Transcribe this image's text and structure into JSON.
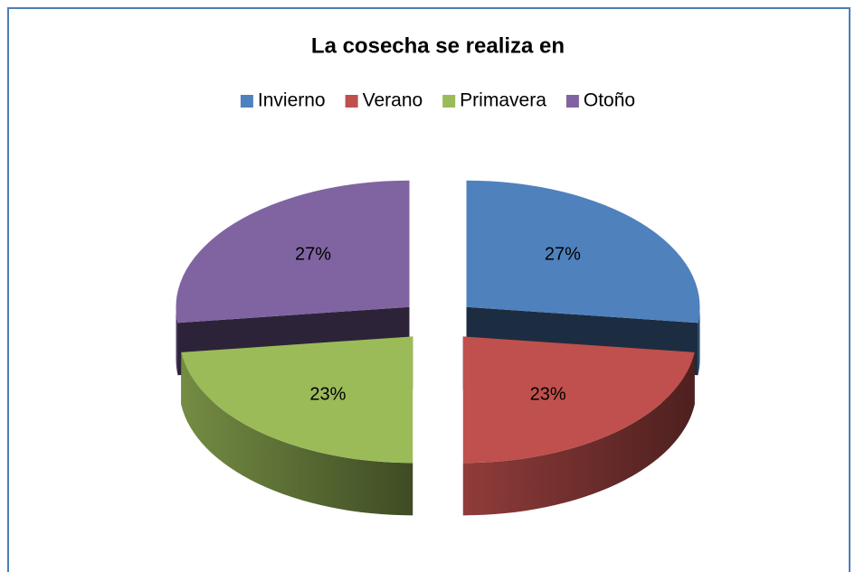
{
  "chart_data": {
    "type": "pie3d",
    "title": "La cosecha se realiza en",
    "categories": [
      "Invierno",
      "Verano",
      "Primavera",
      "Otoño"
    ],
    "values": [
      27,
      23,
      23,
      27
    ],
    "value_labels": [
      "27%",
      "23%",
      "23%",
      "27%"
    ],
    "colors": [
      "#4f81bd",
      "#c0504d",
      "#9bbb59",
      "#8064a2"
    ],
    "legend": "top"
  }
}
